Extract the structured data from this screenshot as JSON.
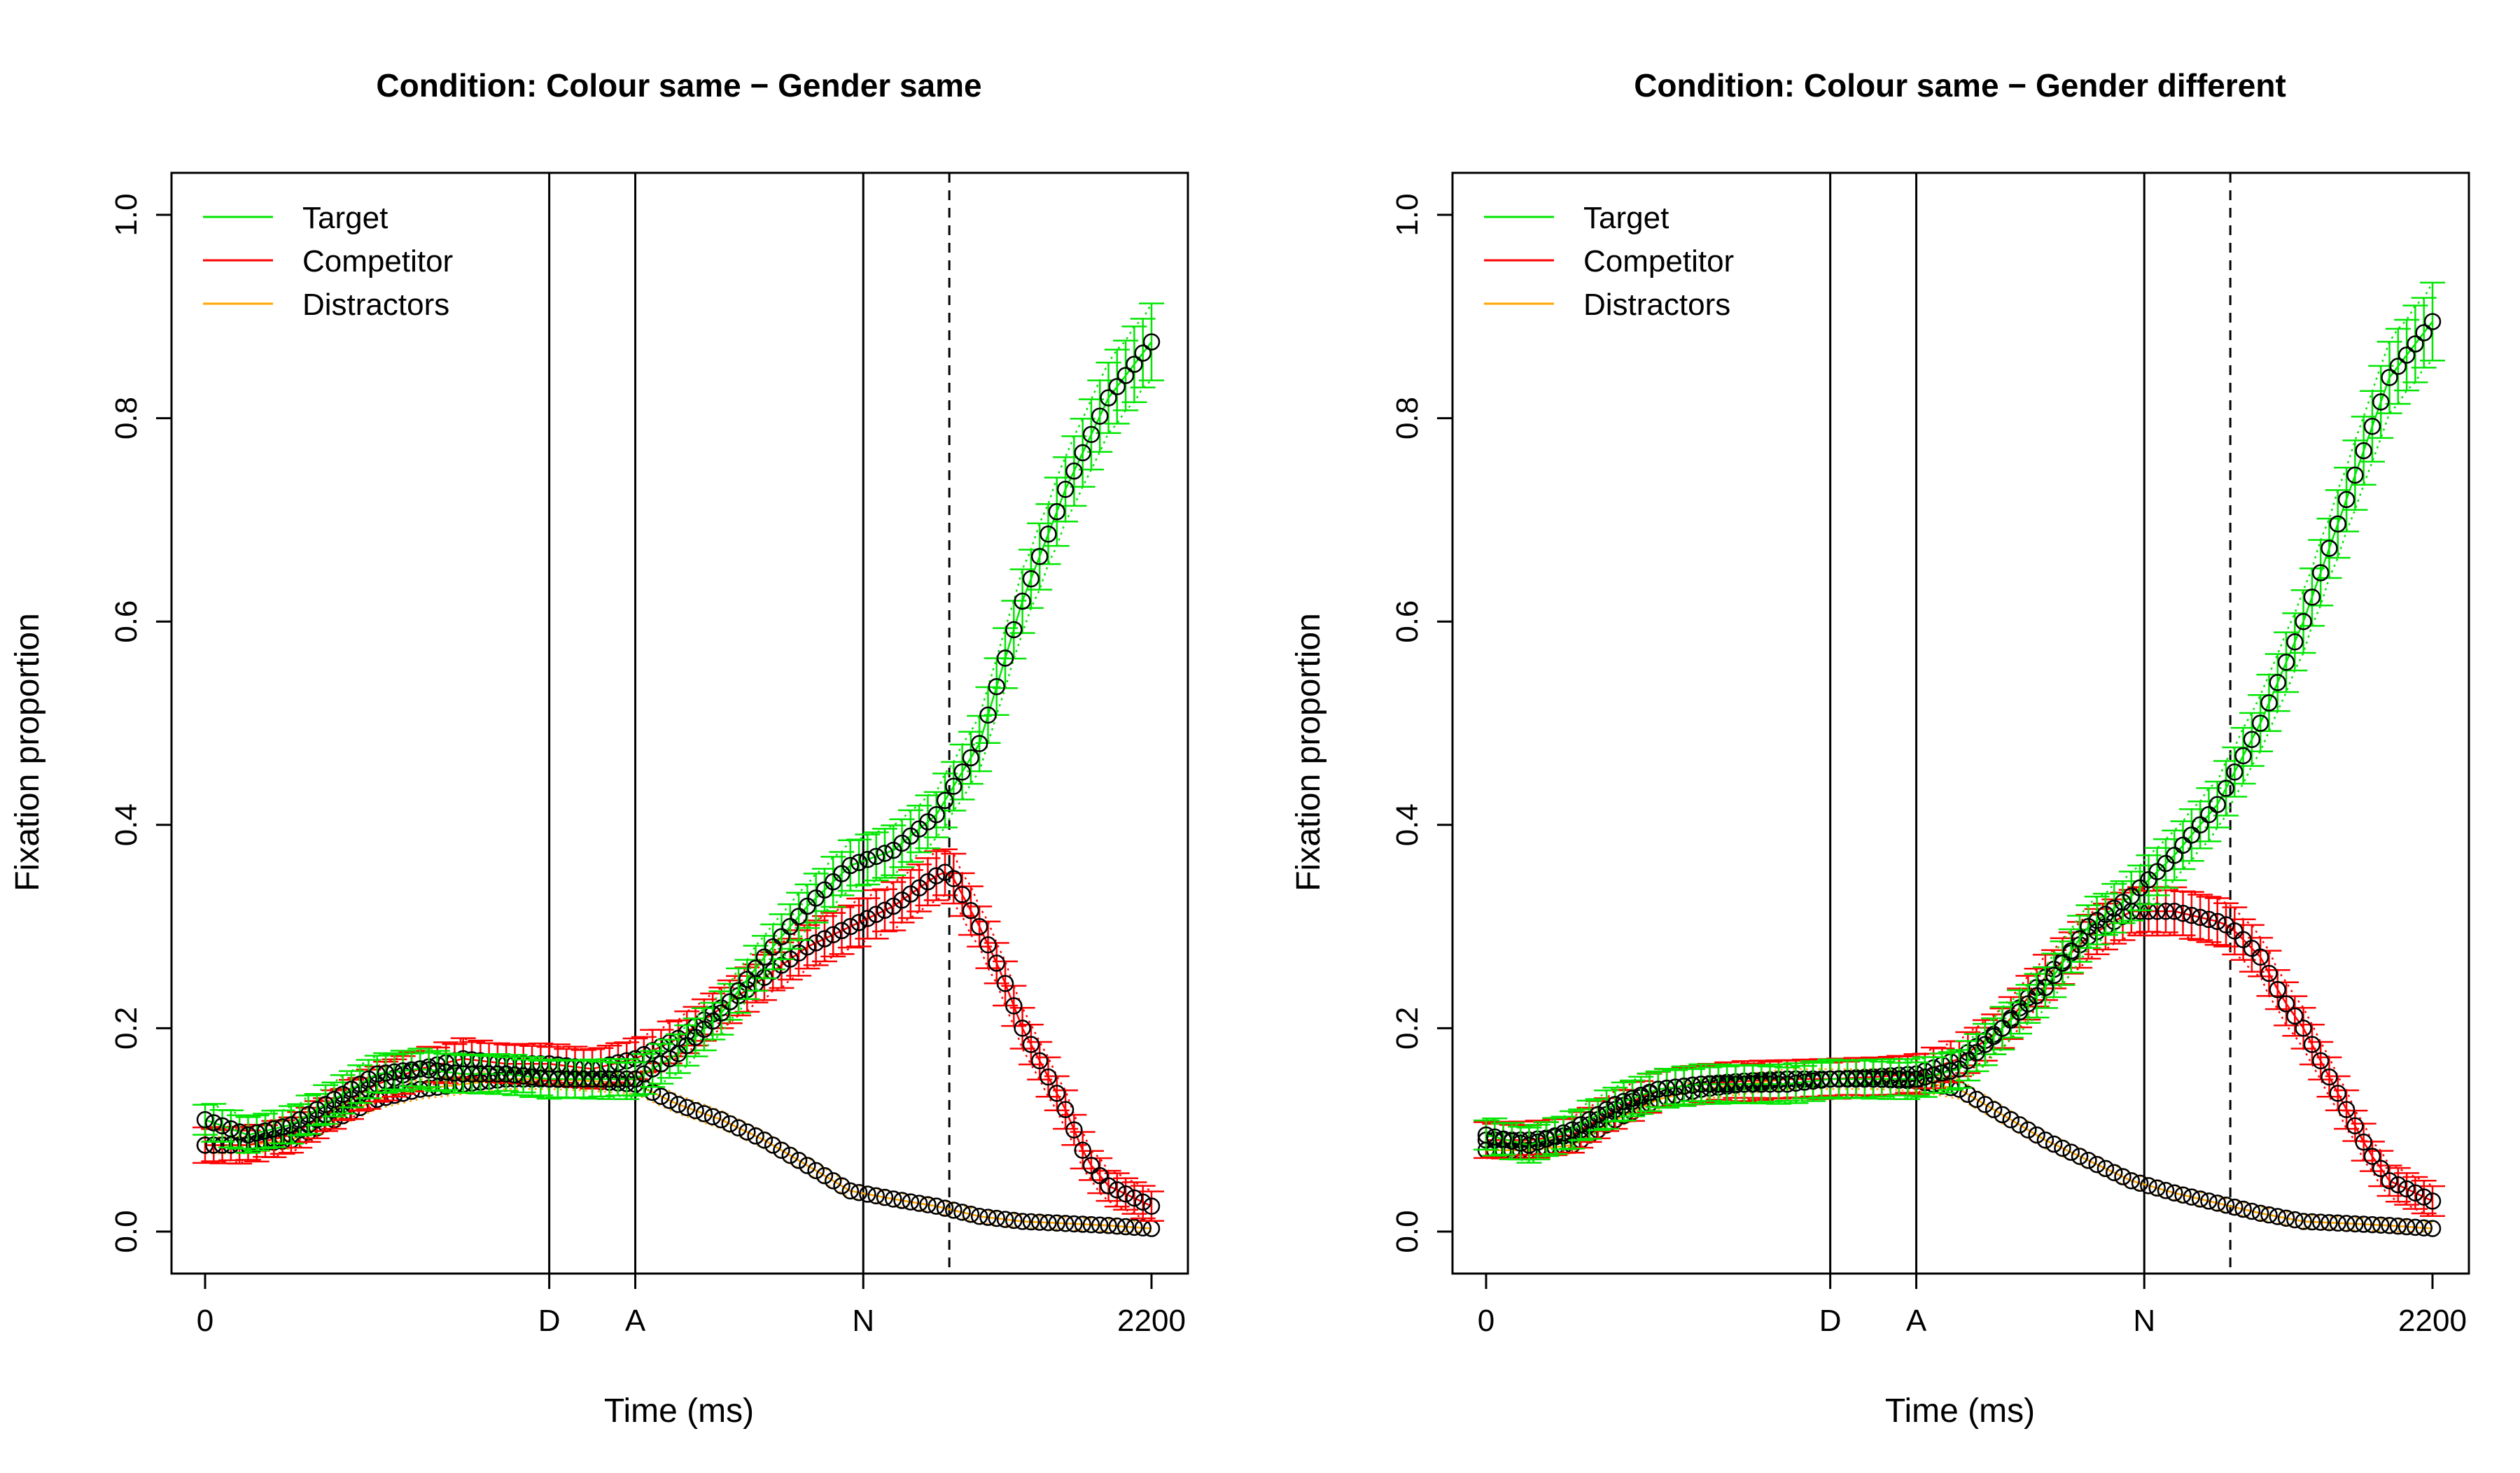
{
  "chart_data": [
    {
      "type": "line",
      "title": "Condition: Colour same − Gender same",
      "xlabel": "Time (ms)",
      "ylabel": "Fixation proportion",
      "xlim": [
        0,
        2200
      ],
      "ylim": [
        0,
        1
      ],
      "x_ticks": [
        {
          "value": 0,
          "label": "0"
        },
        {
          "value": 800,
          "label": "D"
        },
        {
          "value": 1000,
          "label": "A"
        },
        {
          "value": 1530,
          "label": "N"
        },
        {
          "value": 2200,
          "label": "2200"
        }
      ],
      "y_ticks": [
        {
          "value": 0,
          "label": "0.0"
        },
        {
          "value": 0.2,
          "label": "0.2"
        },
        {
          "value": 0.4,
          "label": "0.4"
        },
        {
          "value": 0.6,
          "label": "0.6"
        },
        {
          "value": 0.8,
          "label": "0.8"
        },
        {
          "value": 1,
          "label": "1.0"
        }
      ],
      "vlines": [
        {
          "x": 800,
          "style": "solid"
        },
        {
          "x": 1000,
          "style": "solid"
        },
        {
          "x": 1530,
          "style": "solid"
        },
        {
          "x": 1730,
          "style": "dashed"
        }
      ],
      "legend_position": "top-left",
      "series": [
        {
          "name": "Target",
          "color": "#00e600",
          "points": [
            [
              0,
              0.11
            ],
            [
              100,
              0.095
            ],
            [
              200,
              0.105
            ],
            [
              300,
              0.13
            ],
            [
              400,
              0.155
            ],
            [
              500,
              0.16
            ],
            [
              600,
              0.155
            ],
            [
              700,
              0.155
            ],
            [
              800,
              0.15
            ],
            [
              900,
              0.15
            ],
            [
              1000,
              0.15
            ],
            [
              1100,
              0.175
            ],
            [
              1200,
              0.215
            ],
            [
              1300,
              0.27
            ],
            [
              1400,
              0.32
            ],
            [
              1500,
              0.36
            ],
            [
              1600,
              0.375
            ],
            [
              1700,
              0.41
            ],
            [
              1800,
              0.48
            ],
            [
              1900,
              0.62
            ],
            [
              2000,
              0.73
            ],
            [
              2100,
              0.82
            ],
            [
              2200,
              0.875
            ]
          ]
        },
        {
          "name": "Competitor",
          "color": "#ff0000",
          "points": [
            [
              0,
              0.085
            ],
            [
              100,
              0.085
            ],
            [
              200,
              0.095
            ],
            [
              300,
              0.12
            ],
            [
              400,
              0.145
            ],
            [
              500,
              0.16
            ],
            [
              600,
              0.17
            ],
            [
              700,
              0.165
            ],
            [
              800,
              0.165
            ],
            [
              900,
              0.16
            ],
            [
              1000,
              0.17
            ],
            [
              1100,
              0.19
            ],
            [
              1200,
              0.22
            ],
            [
              1300,
              0.25
            ],
            [
              1400,
              0.28
            ],
            [
              1500,
              0.3
            ],
            [
              1600,
              0.32
            ],
            [
              1700,
              0.35
            ],
            [
              1730,
              0.355
            ],
            [
              1800,
              0.3
            ],
            [
              1850,
              0.255
            ],
            [
              1900,
              0.2
            ],
            [
              1950,
              0.16
            ],
            [
              2000,
              0.12
            ],
            [
              2050,
              0.07
            ],
            [
              2100,
              0.045
            ],
            [
              2200,
              0.025
            ]
          ]
        },
        {
          "name": "Distractors",
          "color": "#ffa500",
          "points": [
            [
              0,
              0.085
            ],
            [
              100,
              0.085
            ],
            [
              200,
              0.09
            ],
            [
              300,
              0.11
            ],
            [
              400,
              0.13
            ],
            [
              500,
              0.14
            ],
            [
              600,
              0.145
            ],
            [
              700,
              0.15
            ],
            [
              800,
              0.15
            ],
            [
              900,
              0.148
            ],
            [
              1000,
              0.145
            ],
            [
              1100,
              0.125
            ],
            [
              1200,
              0.11
            ],
            [
              1300,
              0.09
            ],
            [
              1400,
              0.065
            ],
            [
              1500,
              0.04
            ],
            [
              1600,
              0.032
            ],
            [
              1700,
              0.025
            ],
            [
              1800,
              0.015
            ],
            [
              1900,
              0.01
            ],
            [
              2000,
              0.008
            ],
            [
              2100,
              0.006
            ],
            [
              2200,
              0.003
            ]
          ]
        }
      ]
    },
    {
      "type": "line",
      "title": "Condition: Colour same − Gender different",
      "xlabel": "Time (ms)",
      "ylabel": "Fixation proportion",
      "xlim": [
        0,
        2200
      ],
      "ylim": [
        0,
        1
      ],
      "x_ticks": [
        {
          "value": 0,
          "label": "0"
        },
        {
          "value": 800,
          "label": "D"
        },
        {
          "value": 1000,
          "label": "A"
        },
        {
          "value": 1530,
          "label": "N"
        },
        {
          "value": 2200,
          "label": "2200"
        }
      ],
      "y_ticks": [
        {
          "value": 0,
          "label": "0.0"
        },
        {
          "value": 0.2,
          "label": "0.2"
        },
        {
          "value": 0.4,
          "label": "0.4"
        },
        {
          "value": 0.6,
          "label": "0.6"
        },
        {
          "value": 0.8,
          "label": "0.8"
        },
        {
          "value": 1,
          "label": "1.0"
        }
      ],
      "vlines": [
        {
          "x": 800,
          "style": "solid"
        },
        {
          "x": 1000,
          "style": "solid"
        },
        {
          "x": 1530,
          "style": "solid"
        },
        {
          "x": 1730,
          "style": "dashed"
        }
      ],
      "legend_position": "top-left",
      "series": [
        {
          "name": "Target",
          "color": "#00e600",
          "points": [
            [
              0,
              0.095
            ],
            [
              100,
              0.085
            ],
            [
              200,
              0.1
            ],
            [
              300,
              0.125
            ],
            [
              400,
              0.14
            ],
            [
              500,
              0.145
            ],
            [
              600,
              0.145
            ],
            [
              700,
              0.145
            ],
            [
              800,
              0.15
            ],
            [
              900,
              0.15
            ],
            [
              1000,
              0.15
            ],
            [
              1100,
              0.16
            ],
            [
              1200,
              0.2
            ],
            [
              1300,
              0.24
            ],
            [
              1400,
              0.3
            ],
            [
              1500,
              0.33
            ],
            [
              1600,
              0.37
            ],
            [
              1700,
              0.42
            ],
            [
              1800,
              0.5
            ],
            [
              1900,
              0.6
            ],
            [
              2000,
              0.72
            ],
            [
              2100,
              0.84
            ],
            [
              2200,
              0.895
            ]
          ]
        },
        {
          "name": "Competitor",
          "color": "#ff0000",
          "points": [
            [
              0,
              0.09
            ],
            [
              100,
              0.09
            ],
            [
              200,
              0.095
            ],
            [
              300,
              0.12
            ],
            [
              400,
              0.14
            ],
            [
              500,
              0.145
            ],
            [
              600,
              0.148
            ],
            [
              700,
              0.15
            ],
            [
              800,
              0.15
            ],
            [
              900,
              0.152
            ],
            [
              1000,
              0.155
            ],
            [
              1100,
              0.17
            ],
            [
              1200,
              0.2
            ],
            [
              1300,
              0.25
            ],
            [
              1400,
              0.29
            ],
            [
              1500,
              0.315
            ],
            [
              1600,
              0.315
            ],
            [
              1700,
              0.305
            ],
            [
              1730,
              0.3
            ],
            [
              1800,
              0.27
            ],
            [
              1850,
              0.23
            ],
            [
              1900,
              0.2
            ],
            [
              1950,
              0.16
            ],
            [
              2000,
              0.12
            ],
            [
              2050,
              0.08
            ],
            [
              2100,
              0.05
            ],
            [
              2200,
              0.03
            ]
          ]
        },
        {
          "name": "Distractors",
          "color": "#ffa500",
          "points": [
            [
              0,
              0.08
            ],
            [
              100,
              0.08
            ],
            [
              200,
              0.085
            ],
            [
              300,
              0.11
            ],
            [
              400,
              0.13
            ],
            [
              500,
              0.14
            ],
            [
              600,
              0.145
            ],
            [
              700,
              0.15
            ],
            [
              800,
              0.15
            ],
            [
              900,
              0.15
            ],
            [
              1000,
              0.148
            ],
            [
              1100,
              0.14
            ],
            [
              1200,
              0.115
            ],
            [
              1300,
              0.09
            ],
            [
              1400,
              0.07
            ],
            [
              1500,
              0.05
            ],
            [
              1600,
              0.038
            ],
            [
              1700,
              0.028
            ],
            [
              1800,
              0.018
            ],
            [
              1900,
              0.01
            ],
            [
              2000,
              0.008
            ],
            [
              2100,
              0.006
            ],
            [
              2200,
              0.003
            ]
          ]
        }
      ]
    }
  ]
}
